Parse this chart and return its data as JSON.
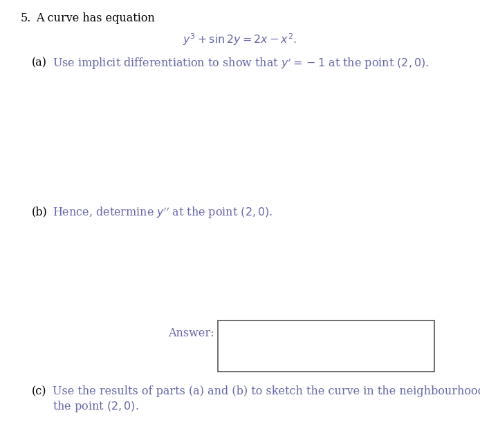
{
  "background_color": "#ffffff",
  "black_color": "#000000",
  "blue_color": "#6666aa",
  "fig_width": 6.94,
  "fig_height": 6.37,
  "dpi": 100,
  "question_number": "5.",
  "intro_text": "A curve has equation",
  "equation": "$y^3 + \\sin 2y = 2x - x^2.$",
  "part_a_label": "(a)",
  "part_a_text": "Use implicit differentiation to show that $y' = -1$ at the point $(2, 0)$.",
  "part_b_label": "(b)",
  "part_b_text": "Hence, determine $y''$ at the point $(2, 0)$.",
  "answer_label": "Answer:",
  "part_c_label": "(c)",
  "part_c_line1": "Use the results of parts (a) and (b) to sketch the curve in the neighbourhood of",
  "part_c_line2": "the point $(2, 0)$.",
  "fontsize": 11.5
}
